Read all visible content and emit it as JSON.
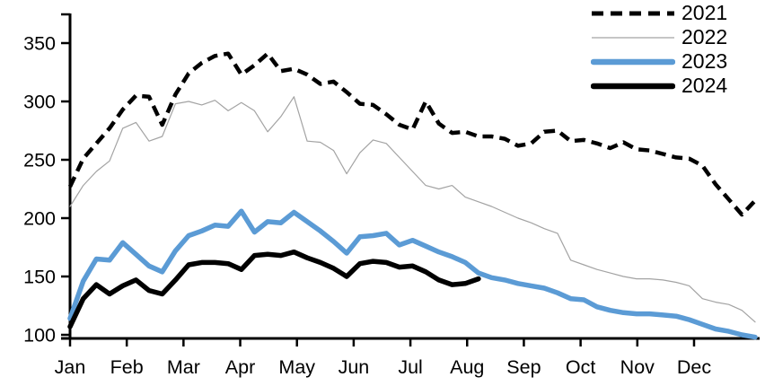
{
  "chart_data": {
    "type": "line",
    "title": "",
    "x_unit": "weekly",
    "x_tick_labels": [
      "Jan",
      "Feb",
      "Mar",
      "Apr",
      "May",
      "Jun",
      "Jul",
      "Aug",
      "Sep",
      "Oct",
      "Nov",
      "Dec"
    ],
    "y_ticks": [
      "100",
      "150",
      "200",
      "250",
      "300",
      "350"
    ],
    "y_range": [
      100,
      375
    ],
    "grid": false,
    "legend_position": "top-right",
    "axis_color": "#000000",
    "series": [
      {
        "name": "2021",
        "color": "#000000",
        "style": "dashed",
        "width": 4.5,
        "values": [
          227,
          251,
          264,
          277,
          293,
          305,
          304,
          280,
          306,
          324,
          333,
          339,
          341,
          323,
          331,
          341,
          326,
          328,
          323,
          315,
          317,
          308,
          298,
          297,
          289,
          280,
          276,
          300,
          281,
          273,
          274,
          270,
          270,
          268,
          262,
          264,
          274,
          275,
          266,
          267,
          264,
          260,
          265,
          259,
          258,
          255,
          252,
          251,
          245,
          229,
          216,
          203,
          215
        ]
      },
      {
        "name": "2022",
        "color": "#a3a3a3",
        "style": "solid",
        "width": 1.2,
        "values": [
          210,
          228,
          240,
          249,
          277,
          282,
          266,
          270,
          298,
          300,
          297,
          301,
          292,
          299,
          292,
          274,
          287,
          304,
          266,
          265,
          258,
          238,
          256,
          267,
          264,
          252,
          240,
          228,
          225,
          228,
          218,
          214,
          210,
          205,
          200,
          196,
          191,
          187,
          164,
          160,
          156,
          153,
          150,
          148,
          148,
          147,
          145,
          142,
          131,
          128,
          126,
          121,
          111
        ]
      },
      {
        "name": "2023",
        "color": "#5b9bd5",
        "style": "solid",
        "width": 5.5,
        "values": [
          114,
          146,
          165,
          164,
          179,
          169,
          159,
          154,
          172,
          185,
          189,
          194,
          193,
          206,
          188,
          197,
          196,
          205,
          197,
          189,
          180,
          170,
          184,
          185,
          187,
          177,
          181,
          176,
          171,
          167,
          162,
          153,
          149,
          147,
          144,
          142,
          140,
          136,
          131,
          130,
          124,
          121,
          119,
          118,
          118,
          117,
          116,
          113,
          109,
          105,
          103,
          100,
          98
        ]
      },
      {
        "name": "2024",
        "color": "#000000",
        "style": "solid",
        "width": 5.5,
        "values": [
          107,
          131,
          143,
          135,
          142,
          147,
          138,
          135,
          147,
          160,
          162,
          162,
          161,
          156,
          168,
          169,
          168,
          171,
          166,
          162,
          157,
          150,
          161,
          163,
          162,
          158,
          159,
          154,
          147,
          143,
          144,
          148
        ]
      }
    ]
  }
}
